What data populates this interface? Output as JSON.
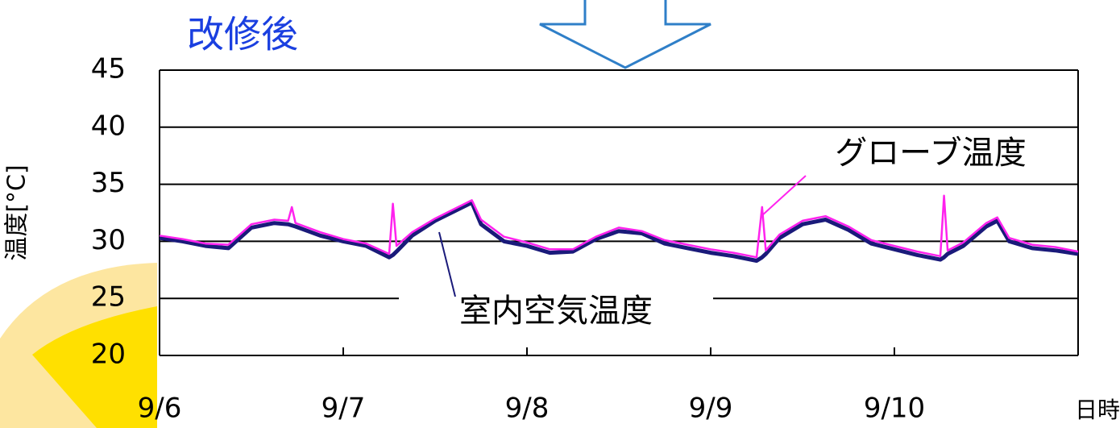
{
  "chart_data": {
    "type": "line",
    "title": "改修後",
    "y_label": "温度[°C]",
    "x_label": "日時",
    "annotations": [
      "グローブ温度",
      "室内空気温度"
    ],
    "xlim": [
      0,
      5
    ],
    "xticks": [
      {
        "value": 0,
        "label": "9/6"
      },
      {
        "value": 1,
        "label": "9/7"
      },
      {
        "value": 2,
        "label": "9/8"
      },
      {
        "value": 3,
        "label": "9/9"
      },
      {
        "value": 4,
        "label": "9/10"
      }
    ],
    "ylim": [
      20,
      45
    ],
    "yticks": [
      20,
      25,
      30,
      35,
      40,
      45
    ],
    "grid": true,
    "x": [
      0,
      0.125,
      0.25,
      0.375,
      0.5,
      0.625,
      0.7,
      0.72,
      0.74,
      0.875,
      1,
      1.125,
      1.25,
      1.27,
      1.29,
      1.375,
      1.5,
      1.625,
      1.7,
      1.75,
      1.875,
      2,
      2.125,
      2.25,
      2.375,
      2.5,
      2.625,
      2.75,
      2.875,
      3,
      3.125,
      3.25,
      3.28,
      3.3,
      3.375,
      3.5,
      3.625,
      3.75,
      3.875,
      4,
      4.125,
      4.25,
      4.27,
      4.29,
      4.375,
      4.5,
      4.56,
      4.625,
      4.75,
      4.875,
      5
    ],
    "series": [
      {
        "name": "グローブ温度",
        "color": "#ff22ee",
        "width": 2.5,
        "values": [
          30.5,
          30.2,
          29.8,
          29.7,
          31.5,
          31.9,
          31.8,
          33.0,
          31.6,
          30.8,
          30.2,
          29.8,
          28.9,
          33.3,
          29.6,
          30.8,
          32.0,
          33.0,
          33.6,
          31.9,
          30.4,
          29.9,
          29.3,
          29.3,
          30.4,
          31.2,
          30.9,
          30.1,
          29.7,
          29.3,
          29.0,
          28.6,
          33.0,
          29.2,
          30.6,
          31.8,
          32.2,
          31.3,
          30.1,
          29.6,
          29.1,
          28.7,
          34.0,
          29.2,
          29.9,
          31.6,
          32.1,
          30.3,
          29.7,
          29.5,
          29.1
        ]
      },
      {
        "name": "室内空気温度",
        "color": "#1a1a7a",
        "width": 5,
        "values": [
          30.3,
          30.0,
          29.6,
          29.4,
          31.2,
          31.6,
          31.5,
          31.4,
          31.3,
          30.5,
          30.0,
          29.6,
          28.6,
          28.8,
          29.1,
          30.5,
          31.8,
          32.8,
          33.4,
          31.5,
          30.0,
          29.6,
          29.0,
          29.1,
          30.2,
          30.9,
          30.7,
          29.8,
          29.4,
          29.0,
          28.7,
          28.3,
          28.6,
          28.9,
          30.3,
          31.5,
          31.9,
          31.0,
          29.8,
          29.3,
          28.8,
          28.4,
          28.6,
          28.9,
          29.6,
          31.3,
          31.8,
          30.0,
          29.4,
          29.2,
          28.9
        ]
      }
    ]
  }
}
